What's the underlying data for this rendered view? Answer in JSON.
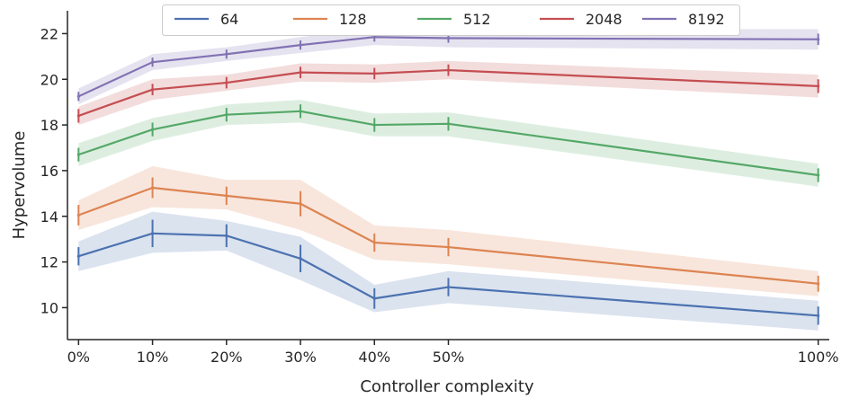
{
  "chart_data": {
    "type": "line",
    "title": "",
    "xlabel": "Controller complexity",
    "ylabel": "Hypervolume",
    "x": [
      0,
      10,
      20,
      30,
      40,
      50,
      100
    ],
    "x_tick_labels": [
      "0%",
      "10%",
      "20%",
      "30%",
      "40%",
      "50%",
      "100%"
    ],
    "y_ticks": [
      10,
      12,
      14,
      16,
      18,
      20,
      22
    ],
    "xlim": [
      -1.5,
      101.5
    ],
    "ylim": [
      8.6,
      23.0
    ],
    "legend_position": "top-center",
    "series": [
      {
        "name": "64",
        "color": "#4c72b0",
        "values": [
          12.25,
          13.25,
          13.15,
          12.15,
          10.4,
          10.9,
          9.65
        ],
        "lower": [
          11.6,
          12.4,
          12.5,
          11.2,
          9.8,
          10.2,
          9.0
        ],
        "upper": [
          12.9,
          14.2,
          13.8,
          13.1,
          11.0,
          11.6,
          10.3
        ],
        "err": [
          0.4,
          0.6,
          0.5,
          0.6,
          0.45,
          0.4,
          0.4
        ]
      },
      {
        "name": "128",
        "color": "#dd8452",
        "values": [
          14.05,
          15.25,
          14.9,
          14.55,
          12.85,
          12.65,
          11.05
        ],
        "lower": [
          13.4,
          14.4,
          14.3,
          13.4,
          12.1,
          11.9,
          10.5
        ],
        "upper": [
          14.7,
          16.2,
          15.6,
          15.6,
          13.6,
          13.4,
          11.6
        ],
        "err": [
          0.45,
          0.45,
          0.4,
          0.55,
          0.4,
          0.4,
          0.35
        ]
      },
      {
        "name": "512",
        "color": "#55a868",
        "values": [
          16.7,
          17.8,
          18.45,
          18.6,
          18.0,
          18.05,
          15.8
        ],
        "lower": [
          16.2,
          17.3,
          18.0,
          18.1,
          17.5,
          17.5,
          15.3
        ],
        "upper": [
          17.2,
          18.3,
          18.9,
          19.1,
          18.5,
          18.55,
          16.3
        ],
        "err": [
          0.3,
          0.3,
          0.3,
          0.3,
          0.3,
          0.3,
          0.3
        ]
      },
      {
        "name": "2048",
        "color": "#c44e52",
        "values": [
          18.4,
          19.55,
          19.85,
          20.3,
          20.25,
          20.4,
          19.7
        ],
        "lower": [
          18.0,
          19.1,
          19.5,
          19.9,
          19.85,
          20.0,
          19.2
        ],
        "upper": [
          18.8,
          20.0,
          20.2,
          20.7,
          20.65,
          20.8,
          20.2
        ],
        "err": [
          0.3,
          0.25,
          0.25,
          0.25,
          0.25,
          0.25,
          0.3
        ]
      },
      {
        "name": "8192",
        "color": "#8172b3",
        "values": [
          19.25,
          20.75,
          21.1,
          21.5,
          21.85,
          21.8,
          21.75
        ],
        "lower": [
          18.9,
          20.4,
          20.8,
          21.15,
          21.5,
          21.4,
          21.3
        ],
        "upper": [
          19.6,
          21.1,
          21.4,
          21.85,
          22.2,
          22.2,
          22.2
        ],
        "err": [
          0.2,
          0.2,
          0.2,
          0.2,
          0.2,
          0.2,
          0.25
        ]
      }
    ]
  }
}
